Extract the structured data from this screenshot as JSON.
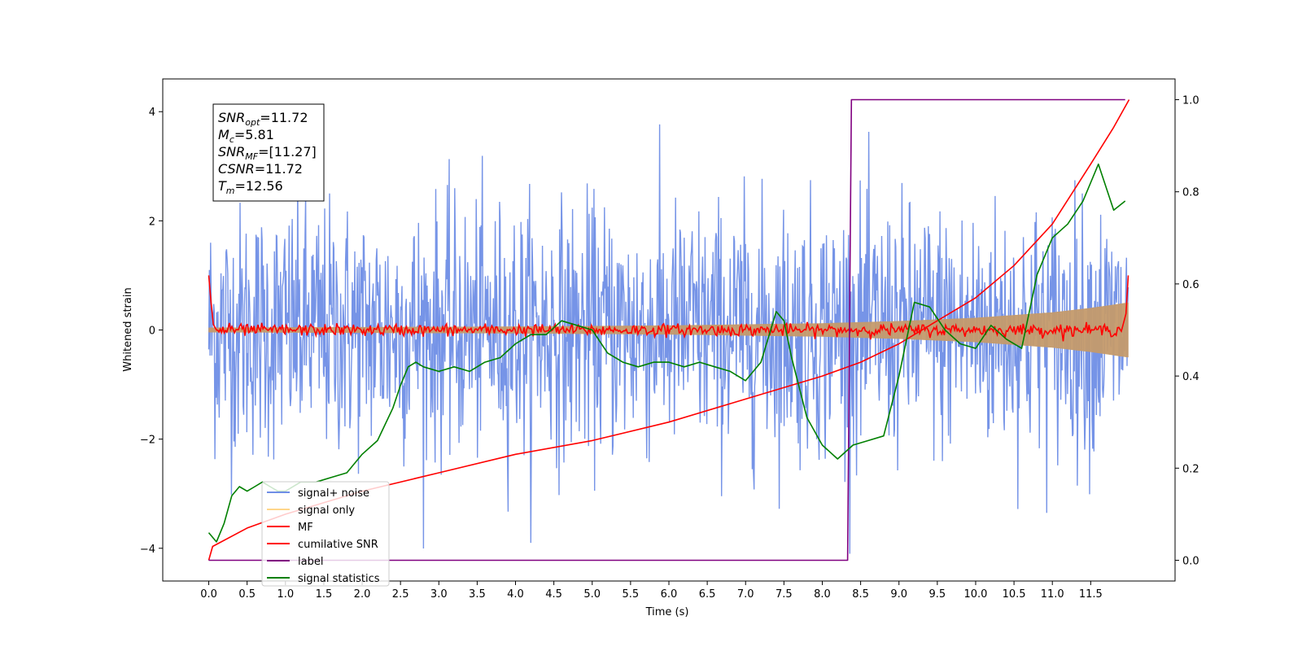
{
  "chart_data": {
    "type": "line",
    "xlabel": "Time (s)",
    "ylabel": "Whitened strain",
    "xlim": [
      -0.6,
      12.6
    ],
    "ylim": [
      -4.6,
      4.6
    ],
    "y2lim": [
      -0.045,
      1.045
    ],
    "x_ticks": [
      0.0,
      0.5,
      1.0,
      1.5,
      2.0,
      2.5,
      3.0,
      3.5,
      4.0,
      4.5,
      5.0,
      5.5,
      6.0,
      6.5,
      7.0,
      7.5,
      8.0,
      8.5,
      9.0,
      9.5,
      10.0,
      10.5,
      11.0,
      11.5
    ],
    "x_tick_labels": [
      "0.0",
      "0.5",
      "1.0",
      "1.5",
      "2.0",
      "2.5",
      "3.0",
      "3.5",
      "4.0",
      "4.5",
      "5.0",
      "5.5",
      "6.0",
      "6.5",
      "7.0",
      "7.5",
      "8.0",
      "8.5",
      "9.0",
      "9.5",
      "10.0",
      "10.5",
      "11.0",
      "11.5"
    ],
    "y_ticks": [
      -4,
      -2,
      0,
      2,
      4
    ],
    "y_tick_labels": [
      "−4",
      "−2",
      "0",
      "2",
      "4"
    ],
    "y2_ticks": [
      0.0,
      0.2,
      0.4,
      0.6,
      0.8,
      1.0
    ],
    "y2_tick_labels": [
      "0.0",
      "0.2",
      "0.4",
      "0.6",
      "0.8",
      "1.0"
    ],
    "legend_location": "lower-left",
    "grid": false,
    "series": [
      {
        "name": "signal+ noise",
        "color": "#6f8ee6",
        "axis": "left",
        "description_values": "dense whitened noise, approx. ±1.5 typical, spikes to about ±4",
        "x_range": [
          0.0,
          11.99
        ],
        "sample_points": 1500
      },
      {
        "name": "signal only",
        "color": "#ffc66e",
        "axis": "left",
        "envelope": {
          "x": [
            0.0,
            2.0,
            4.0,
            6.0,
            8.0,
            9.0,
            10.0,
            11.0,
            11.5,
            11.99
          ],
          "amplitude": [
            0.04,
            0.05,
            0.06,
            0.08,
            0.12,
            0.16,
            0.22,
            0.32,
            0.4,
            0.5
          ]
        }
      },
      {
        "name": "MF",
        "color": "#ff0000",
        "axis": "left",
        "x": [
          0.0,
          0.03,
          0.06,
          0.1
        ],
        "y": [
          1.0,
          0.5,
          0.1,
          0.0
        ],
        "noise_amplitude": 0.1
      },
      {
        "name": "cumilative SNR",
        "color": "#ff0000",
        "axis": "right",
        "x": [
          0.0,
          0.05,
          0.5,
          1.0,
          2.0,
          3.0,
          4.0,
          5.0,
          6.0,
          7.0,
          8.0,
          8.5,
          9.0,
          9.5,
          10.0,
          10.5,
          11.0,
          11.5,
          11.8,
          12.0
        ],
        "y": [
          0.0,
          0.03,
          0.07,
          0.1,
          0.15,
          0.19,
          0.23,
          0.26,
          0.3,
          0.35,
          0.4,
          0.43,
          0.47,
          0.52,
          0.57,
          0.64,
          0.73,
          0.86,
          0.94,
          1.0
        ]
      },
      {
        "name": "label",
        "color": "#800080",
        "axis": "right",
        "x": [
          0.0,
          8.33,
          8.38,
          11.95
        ],
        "y": [
          0.0,
          0.0,
          1.0,
          1.0
        ]
      },
      {
        "name": "signal statistics",
        "color": "#008000",
        "axis": "right",
        "x": [
          0.0,
          0.1,
          0.2,
          0.3,
          0.4,
          0.5,
          0.6,
          0.7,
          0.8,
          0.9,
          1.0,
          1.2,
          1.4,
          1.6,
          1.8,
          2.0,
          2.2,
          2.4,
          2.5,
          2.6,
          2.7,
          2.8,
          3.0,
          3.2,
          3.4,
          3.6,
          3.8,
          4.0,
          4.2,
          4.4,
          4.6,
          4.8,
          5.0,
          5.2,
          5.4,
          5.6,
          5.8,
          6.0,
          6.2,
          6.4,
          6.6,
          6.8,
          7.0,
          7.2,
          7.4,
          7.5,
          7.6,
          7.8,
          8.0,
          8.2,
          8.4,
          8.6,
          8.8,
          9.0,
          9.2,
          9.4,
          9.6,
          9.8,
          10.0,
          10.2,
          10.4,
          10.6,
          10.8,
          11.0,
          11.2,
          11.4,
          11.6,
          11.8,
          11.95
        ],
        "y": [
          0.06,
          0.04,
          0.08,
          0.14,
          0.16,
          0.15,
          0.16,
          0.17,
          0.16,
          0.15,
          0.15,
          0.17,
          0.17,
          0.18,
          0.19,
          0.23,
          0.26,
          0.33,
          0.38,
          0.42,
          0.43,
          0.42,
          0.41,
          0.42,
          0.41,
          0.43,
          0.44,
          0.47,
          0.49,
          0.49,
          0.52,
          0.51,
          0.5,
          0.45,
          0.43,
          0.42,
          0.43,
          0.43,
          0.42,
          0.43,
          0.42,
          0.41,
          0.39,
          0.43,
          0.54,
          0.52,
          0.44,
          0.31,
          0.25,
          0.22,
          0.25,
          0.26,
          0.27,
          0.4,
          0.56,
          0.55,
          0.5,
          0.47,
          0.46,
          0.51,
          0.48,
          0.46,
          0.62,
          0.7,
          0.73,
          0.78,
          0.86,
          0.76,
          0.78
        ]
      }
    ],
    "legend": [
      "signal+ noise",
      "signal only",
      "MF",
      "cumilative SNR",
      "label",
      "signal statistics"
    ]
  },
  "annotation": {
    "lines": [
      {
        "symbol": "SNR",
        "sub": "opt",
        "value": "=11.72"
      },
      {
        "symbol": "M",
        "sub": "c",
        "value": "=5.81"
      },
      {
        "symbol": "SNR",
        "sub": "MF",
        "value": "=[11.27]"
      },
      {
        "symbol": "CSNR",
        "sub": "",
        "value": "=11.72"
      },
      {
        "symbol": "T",
        "sub": "m",
        "value": "=12.56"
      }
    ]
  }
}
